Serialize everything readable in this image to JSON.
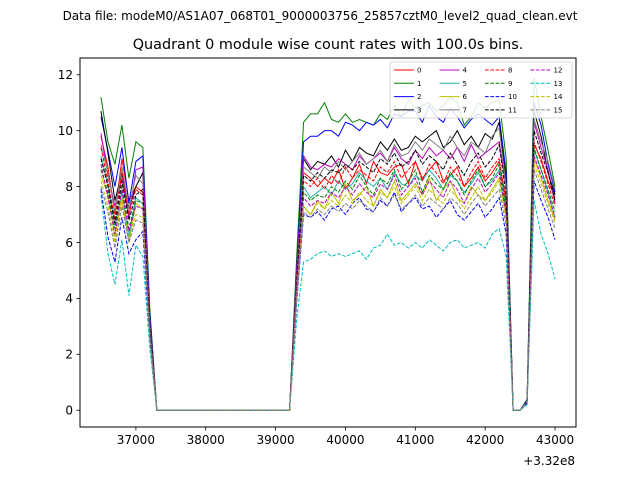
{
  "figure": {
    "suptitle": "Data file: modeM0/AS1A07_068T01_9000003756_25857cztM0_level2_quad_clean.evt",
    "offset_label": "+3.32e8"
  },
  "chart_data": {
    "type": "line",
    "title": "Quadrant 0 module wise count rates with 100.0s bins.",
    "xlabel": "",
    "ylabel": "",
    "xlim": [
      36200,
      43300
    ],
    "ylim": [
      -0.6,
      12.6
    ],
    "x_offset": 332000000,
    "xticks": [
      37000,
      38000,
      39000,
      40000,
      41000,
      42000,
      43000
    ],
    "yticks": [
      0,
      2,
      4,
      6,
      8,
      10,
      12
    ],
    "grid": false,
    "legend_placement": "upper right",
    "x": [
      36500,
      36600,
      36700,
      36800,
      36900,
      37000,
      37100,
      37200,
      37300,
      37400,
      37500,
      37600,
      37700,
      37800,
      37900,
      38000,
      38100,
      38200,
      38300,
      38400,
      38500,
      38600,
      38700,
      38800,
      38900,
      39000,
      39100,
      39200,
      39300,
      39400,
      39500,
      39600,
      39700,
      39800,
      39900,
      40000,
      40100,
      40200,
      40300,
      40400,
      40500,
      40600,
      40700,
      40800,
      40900,
      41000,
      41100,
      41200,
      41300,
      41400,
      41500,
      41600,
      41700,
      41800,
      41900,
      42000,
      42100,
      42200,
      42300,
      42400,
      42500,
      42600,
      42700,
      42800,
      42900,
      43000
    ],
    "series": [
      {
        "name": "0",
        "color": "#ff0000",
        "dash": "solid",
        "values": [
          9.8,
          8.7,
          7.0,
          9.0,
          7.5,
          8.0,
          7.8,
          3.0,
          0.0,
          0,
          0,
          0,
          0,
          0,
          0,
          0,
          0,
          0,
          0,
          0,
          0,
          0,
          0,
          0,
          0,
          0,
          0,
          0.0,
          4.5,
          8.5,
          8.3,
          8.0,
          8.3,
          8.1,
          8.6,
          7.9,
          8.3,
          8.8,
          8.1,
          8.9,
          8.5,
          8.4,
          8.7,
          8.8,
          8.1,
          8.9,
          8.3,
          8.6,
          8.9,
          8.2,
          8.4,
          8.7,
          8.0,
          8.3,
          8.7,
          8.2,
          8.5,
          8.9,
          7.5,
          0.0,
          0.0,
          0.3,
          9.5,
          9.0,
          8.2,
          7.6
        ]
      },
      {
        "name": "1",
        "color": "#008000",
        "dash": "solid",
        "values": [
          11.2,
          9.6,
          8.8,
          10.2,
          8.3,
          9.6,
          9.4,
          3.6,
          0.0,
          0,
          0,
          0,
          0,
          0,
          0,
          0,
          0,
          0,
          0,
          0,
          0,
          0,
          0,
          0,
          0,
          0,
          0,
          0.0,
          5.4,
          10.3,
          10.6,
          10.6,
          11.0,
          10.4,
          10.3,
          10.6,
          10.3,
          10.4,
          10.3,
          10.2,
          10.6,
          10.4,
          10.9,
          10.5,
          11.1,
          10.8,
          10.9,
          11.0,
          10.7,
          10.9,
          11.2,
          11.0,
          10.2,
          10.5,
          11.0,
          10.8,
          11.0,
          11.1,
          9.0,
          0.0,
          0.0,
          0.4,
          11.9,
          10.5,
          9.3,
          8.0
        ]
      },
      {
        "name": "2",
        "color": "#0000ff",
        "dash": "solid",
        "values": [
          10.5,
          9.3,
          8.0,
          9.4,
          7.4,
          8.9,
          9.1,
          3.4,
          0.0,
          0,
          0,
          0,
          0,
          0,
          0,
          0,
          0,
          0,
          0,
          0,
          0,
          0,
          0,
          0,
          0,
          0,
          0,
          0.0,
          5.0,
          9.6,
          9.8,
          9.8,
          10.0,
          10.0,
          9.8,
          10.3,
          10.2,
          10.0,
          10.3,
          10.2,
          10.4,
          10.1,
          10.6,
          10.5,
          10.7,
          10.7,
          10.3,
          10.9,
          10.5,
          10.3,
          10.8,
          10.5,
          10.1,
          10.4,
          10.6,
          10.4,
          10.2,
          10.5,
          8.5,
          0.0,
          0.0,
          0.35,
          11.0,
          10.2,
          8.8,
          7.8
        ]
      },
      {
        "name": "3",
        "color": "#000000",
        "dash": "solid",
        "values": [
          10.7,
          9.2,
          7.5,
          8.5,
          7.2,
          8.0,
          8.5,
          3.2,
          0.0,
          0,
          0,
          0,
          0,
          0,
          0,
          0,
          0,
          0,
          0,
          0,
          0,
          0,
          0,
          0,
          0,
          0,
          0,
          0.0,
          4.9,
          9.0,
          8.6,
          8.9,
          8.8,
          9.1,
          8.7,
          9.3,
          8.9,
          9.4,
          9.2,
          9.1,
          9.6,
          9.3,
          9.7,
          9.3,
          9.4,
          9.8,
          9.6,
          9.8,
          10.0,
          9.4,
          9.6,
          10.0,
          9.5,
          9.8,
          9.4,
          9.9,
          9.7,
          10.3,
          8.2,
          0.0,
          0.0,
          0.3,
          10.7,
          9.8,
          8.5,
          7.7
        ]
      },
      {
        "name": "4",
        "color": "#bf00bf",
        "dash": "solid",
        "values": [
          9.9,
          8.4,
          7.3,
          8.3,
          6.9,
          8.6,
          8.7,
          3.1,
          0.0,
          0,
          0,
          0,
          0,
          0,
          0,
          0,
          0,
          0,
          0,
          0,
          0,
          0,
          0,
          0,
          0,
          0,
          0,
          0.0,
          4.8,
          9.1,
          8.7,
          8.6,
          8.8,
          8.7,
          9.0,
          8.8,
          8.6,
          9.1,
          8.8,
          9.0,
          9.2,
          8.9,
          9.4,
          9.0,
          8.8,
          9.3,
          9.0,
          9.4,
          9.1,
          9.3,
          9.0,
          9.4,
          8.9,
          9.5,
          9.0,
          9.2,
          9.4,
          9.6,
          8.0,
          0.0,
          0.0,
          0.3,
          10.3,
          9.4,
          8.6,
          7.4
        ]
      },
      {
        "name": "5",
        "color": "#20b2aa",
        "dash": "solid",
        "values": [
          9.1,
          8.1,
          6.6,
          7.8,
          6.2,
          7.6,
          7.4,
          2.9,
          0.0,
          0,
          0,
          0,
          0,
          0,
          0,
          0,
          0,
          0,
          0,
          0,
          0,
          0,
          0,
          0,
          0,
          0,
          0,
          0.0,
          4.3,
          8.0,
          7.6,
          7.8,
          8.0,
          7.7,
          8.2,
          7.9,
          8.1,
          8.5,
          8.2,
          8.0,
          8.3,
          7.9,
          8.5,
          8.1,
          8.0,
          8.4,
          8.2,
          8.6,
          8.3,
          7.9,
          8.4,
          8.2,
          7.8,
          8.1,
          8.5,
          8.0,
          8.2,
          8.6,
          7.2,
          0.0,
          0.0,
          0.3,
          9.3,
          8.6,
          7.8,
          6.9
        ]
      },
      {
        "name": "6",
        "color": "#bfbf00",
        "dash": "solid",
        "values": [
          8.4,
          7.7,
          6.2,
          7.6,
          6.0,
          7.4,
          7.2,
          2.8,
          0.0,
          0,
          0,
          0,
          0,
          0,
          0,
          0,
          0,
          0,
          0,
          0,
          0,
          0,
          0,
          0,
          0,
          0,
          0,
          0.0,
          4.2,
          7.3,
          7.0,
          7.5,
          7.2,
          7.8,
          7.4,
          8.1,
          7.5,
          7.7,
          8.0,
          7.3,
          7.9,
          7.6,
          8.2,
          7.5,
          7.8,
          8.1,
          7.7,
          8.3,
          7.5,
          7.9,
          8.2,
          7.6,
          7.4,
          8.0,
          7.7,
          7.5,
          7.9,
          8.3,
          7.0,
          0.0,
          0.0,
          0.3,
          9.0,
          8.3,
          7.5,
          6.8
        ]
      },
      {
        "name": "7",
        "color": "#808080",
        "dash": "solid",
        "values": [
          9.5,
          8.5,
          7.1,
          8.7,
          7.2,
          8.4,
          8.1,
          3.0,
          0.0,
          0,
          0,
          0,
          0,
          0,
          0,
          0,
          0,
          0,
          0,
          0,
          0,
          0,
          0,
          0,
          0,
          0,
          0,
          0.0,
          4.6,
          8.7,
          8.5,
          8.3,
          8.7,
          8.5,
          8.9,
          8.6,
          8.9,
          9.2,
          8.8,
          9.0,
          9.3,
          8.9,
          9.5,
          9.1,
          9.2,
          9.6,
          9.3,
          9.7,
          9.5,
          9.3,
          9.8,
          9.4,
          9.1,
          9.6,
          9.4,
          9.2,
          9.8,
          10.1,
          8.0,
          0.0,
          0.0,
          0.3,
          10.4,
          9.6,
          8.9,
          7.9
        ]
      },
      {
        "name": "8",
        "color": "#ff0000",
        "dash": "dashed",
        "values": [
          9.4,
          8.2,
          6.8,
          8.5,
          7.0,
          7.9,
          7.7,
          2.9,
          0.0,
          0,
          0,
          0,
          0,
          0,
          0,
          0,
          0,
          0,
          0,
          0,
          0,
          0,
          0,
          0,
          0,
          0,
          0,
          0.0,
          4.5,
          8.2,
          8.0,
          8.3,
          7.9,
          8.4,
          8.1,
          8.7,
          8.3,
          8.6,
          8.4,
          8.2,
          8.7,
          8.5,
          8.9,
          8.3,
          8.6,
          8.9,
          8.2,
          8.8,
          8.5,
          8.1,
          8.7,
          8.4,
          8.0,
          8.5,
          8.9,
          8.3,
          8.7,
          9.0,
          7.4,
          0.0,
          0.0,
          0.3,
          9.6,
          8.9,
          8.1,
          7.3
        ]
      },
      {
        "name": "9",
        "color": "#008000",
        "dash": "dashed",
        "values": [
          8.6,
          7.8,
          6.5,
          8.0,
          6.5,
          7.5,
          7.4,
          2.8,
          0.0,
          0,
          0,
          0,
          0,
          0,
          0,
          0,
          0,
          0,
          0,
          0,
          0,
          0,
          0,
          0,
          0,
          0,
          0,
          0.0,
          4.3,
          7.8,
          7.5,
          7.7,
          7.6,
          8.0,
          7.8,
          8.2,
          7.9,
          8.4,
          8.0,
          7.7,
          8.3,
          8.1,
          8.6,
          7.9,
          8.2,
          8.6,
          7.8,
          8.4,
          8.1,
          7.9,
          8.5,
          8.2,
          7.7,
          8.2,
          8.6,
          8.0,
          8.3,
          8.8,
          7.2,
          0.0,
          0.0,
          0.3,
          9.4,
          8.6,
          7.9,
          7.1
        ]
      },
      {
        "name": "10",
        "color": "#0000ff",
        "dash": "dashed",
        "values": [
          7.9,
          6.2,
          5.3,
          6.9,
          5.6,
          6.1,
          6.4,
          2.4,
          0.0,
          0,
          0,
          0,
          0,
          0,
          0,
          0,
          0,
          0,
          0,
          0,
          0,
          0,
          0,
          0,
          0,
          0,
          0,
          0.0,
          3.8,
          7.0,
          6.9,
          7.1,
          6.8,
          7.2,
          7.3,
          7.0,
          7.4,
          7.6,
          7.2,
          7.1,
          7.5,
          7.3,
          7.8,
          7.1,
          7.4,
          7.6,
          7.2,
          7.3,
          6.9,
          7.2,
          7.5,
          7.0,
          6.8,
          7.1,
          7.4,
          6.9,
          7.2,
          7.6,
          6.3,
          0.0,
          0.0,
          0.25,
          8.2,
          7.5,
          6.9,
          6.1
        ]
      },
      {
        "name": "11",
        "color": "#000000",
        "dash": "dashed",
        "values": [
          9.0,
          8.0,
          6.7,
          8.2,
          6.8,
          7.7,
          7.9,
          2.9,
          0.0,
          0,
          0,
          0,
          0,
          0,
          0,
          0,
          0,
          0,
          0,
          0,
          0,
          0,
          0,
          0,
          0,
          0,
          0,
          0.0,
          4.4,
          8.4,
          8.2,
          8.5,
          8.3,
          8.6,
          8.5,
          8.8,
          8.6,
          8.9,
          8.7,
          8.5,
          9.0,
          8.8,
          9.2,
          8.7,
          8.9,
          9.3,
          8.8,
          9.1,
          8.9,
          8.6,
          9.2,
          8.8,
          8.4,
          8.9,
          9.2,
          8.7,
          9.0,
          9.5,
          7.7,
          0.0,
          0.0,
          0.3,
          10.0,
          9.2,
          8.5,
          7.5
        ]
      },
      {
        "name": "12",
        "color": "#bf00bf",
        "dash": "dashed",
        "values": [
          8.8,
          7.6,
          6.3,
          7.9,
          6.4,
          7.3,
          7.2,
          2.7,
          0.0,
          0,
          0,
          0,
          0,
          0,
          0,
          0,
          0,
          0,
          0,
          0,
          0,
          0,
          0,
          0,
          0,
          0,
          0,
          0.0,
          4.2,
          7.6,
          7.3,
          7.5,
          7.4,
          7.8,
          7.6,
          8.0,
          7.7,
          8.1,
          7.8,
          7.6,
          8.1,
          7.9,
          8.4,
          7.7,
          8.0,
          8.3,
          7.7,
          8.2,
          7.9,
          7.6,
          8.2,
          7.9,
          7.4,
          7.9,
          8.3,
          7.8,
          8.1,
          8.5,
          7.0,
          0.0,
          0.0,
          0.3,
          9.1,
          8.4,
          7.7,
          6.9
        ]
      },
      {
        "name": "13",
        "color": "#00bfbf",
        "dash": "dashed",
        "values": [
          7.7,
          5.6,
          4.5,
          6.1,
          4.1,
          5.9,
          5.5,
          2.2,
          0.0,
          0,
          0,
          0,
          0,
          0,
          0,
          0,
          0,
          0,
          0,
          0,
          0,
          0,
          0,
          0,
          0,
          0,
          0,
          0.0,
          3.2,
          5.3,
          5.4,
          5.6,
          5.7,
          5.5,
          5.6,
          5.5,
          5.6,
          5.7,
          5.4,
          5.8,
          5.9,
          6.3,
          5.9,
          6.0,
          5.8,
          6.0,
          5.8,
          6.1,
          5.9,
          5.7,
          6.0,
          6.1,
          5.8,
          5.9,
          6.0,
          5.8,
          6.3,
          6.5,
          5.5,
          0.0,
          0.0,
          0.2,
          7.5,
          6.3,
          5.6,
          4.7
        ]
      },
      {
        "name": "14",
        "color": "#bfbf00",
        "dash": "dashed",
        "values": [
          8.2,
          7.3,
          6.0,
          7.5,
          6.1,
          7.0,
          6.9,
          2.6,
          0.0,
          0,
          0,
          0,
          0,
          0,
          0,
          0,
          0,
          0,
          0,
          0,
          0,
          0,
          0,
          0,
          0,
          0,
          0,
          0.0,
          4.0,
          7.3,
          7.0,
          7.4,
          7.2,
          7.5,
          7.3,
          7.7,
          7.4,
          7.8,
          7.5,
          7.3,
          7.8,
          7.6,
          8.0,
          7.4,
          7.7,
          8.0,
          7.5,
          7.9,
          7.6,
          7.4,
          7.9,
          7.6,
          7.2,
          7.6,
          8.0,
          7.5,
          7.8,
          8.2,
          6.8,
          0.0,
          0.0,
          0.3,
          8.8,
          8.1,
          7.4,
          6.7
        ]
      },
      {
        "name": "15",
        "color": "#808080",
        "dash": "dashed",
        "values": [
          8.0,
          7.1,
          5.8,
          7.3,
          6.0,
          6.8,
          6.7,
          2.6,
          0.0,
          0,
          0,
          0,
          0,
          0,
          0,
          0,
          0,
          0,
          0,
          0,
          0,
          0,
          0,
          0,
          0,
          0,
          0,
          0.0,
          3.9,
          7.1,
          6.9,
          7.2,
          7.0,
          7.3,
          7.1,
          7.4,
          7.2,
          7.5,
          7.3,
          7.1,
          7.6,
          7.3,
          7.7,
          7.2,
          7.4,
          7.7,
          7.3,
          7.6,
          7.4,
          7.2,
          7.6,
          7.4,
          7.0,
          7.4,
          7.7,
          7.3,
          7.6,
          7.9,
          6.6,
          0.0,
          0.0,
          0.3,
          8.6,
          7.9,
          7.2,
          6.5
        ]
      }
    ]
  }
}
